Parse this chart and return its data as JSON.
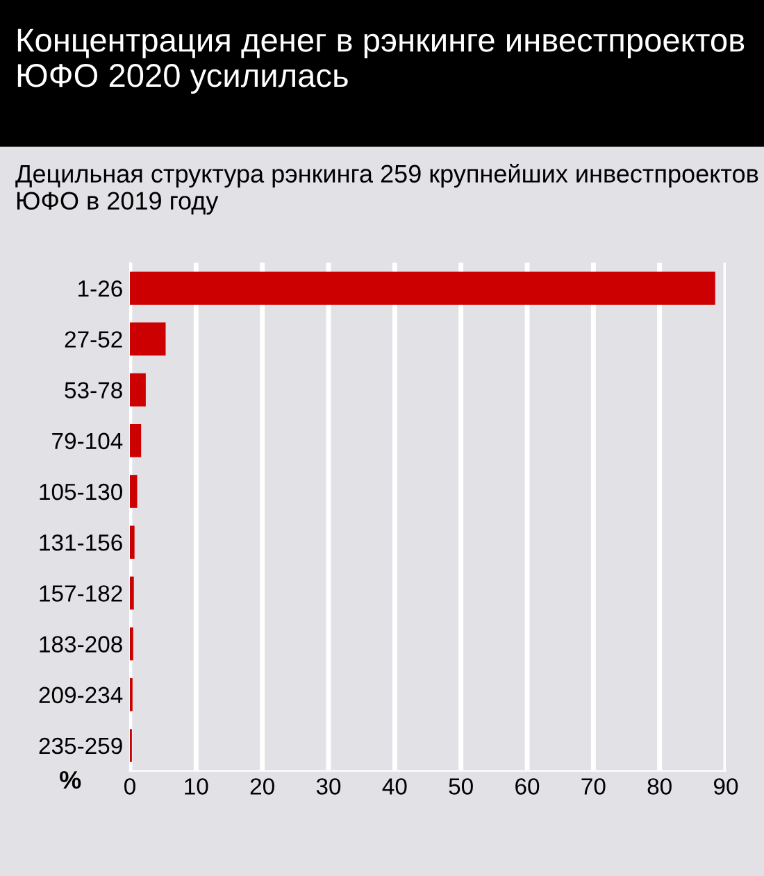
{
  "chart_data": {
    "type": "bar",
    "orientation": "horizontal",
    "title": "Концентрация денег в рэнкинге инвестпроектов ЮФО 2020 усилилась",
    "subtitle": "Децильная структура рэнкинга 259 крупнейших инвестпроектов ЮФО в 2019 году",
    "xlabel": "%",
    "categories": [
      "1-26",
      "27-52",
      "53-78",
      "79-104",
      "105-130",
      "131-156",
      "157-182",
      "183-208",
      "209-234",
      "235-259"
    ],
    "values": [
      88.4,
      5.4,
      2.4,
      1.7,
      1.1,
      0.7,
      0.6,
      0.5,
      0.4,
      0.3
    ],
    "color": "#cc0000",
    "xlim": [
      0,
      90
    ],
    "xticks": [
      0,
      10,
      20,
      30,
      40,
      50,
      60,
      70,
      80,
      90
    ],
    "grid": "x",
    "legend": false
  }
}
